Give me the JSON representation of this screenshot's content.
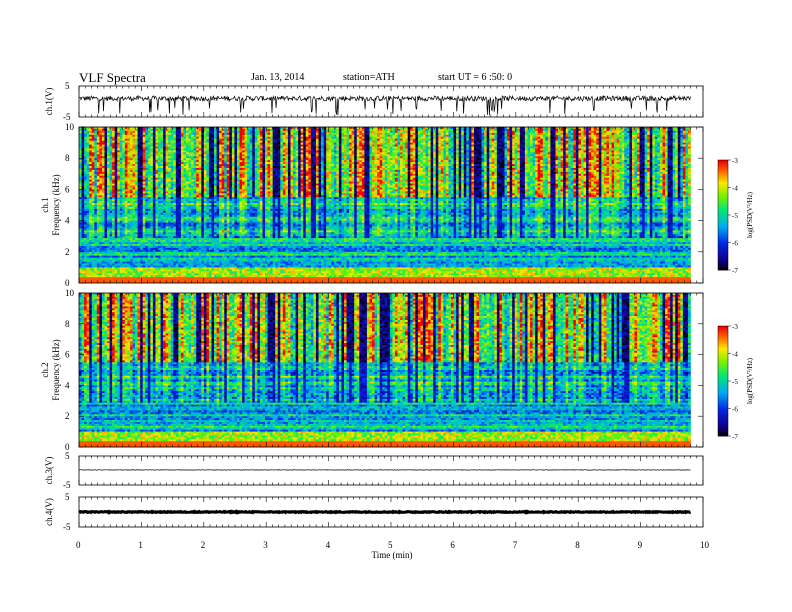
{
  "header": {
    "title": "VLF Spectra",
    "date": "Jan. 13, 2014",
    "station": "station=ATH",
    "start": "start UT =  6 :50: 0"
  },
  "chart_data": [
    {
      "type": "line",
      "panel": "ch1-waveform",
      "ylabel": "ch.1(V)",
      "ylim": [
        -5,
        5
      ],
      "yticks": [
        "5",
        "-5"
      ],
      "description_series": "noisy waveform around +1 V with frequent negative spikes",
      "baseline": 1.0,
      "spike_min": -4.5
    },
    {
      "type": "heatmap",
      "panel": "ch1-spectrogram",
      "ylabel": "ch.1\nFrequency (kHz)",
      "xlabel": "Time (min)",
      "xlim": [
        0,
        10
      ],
      "ylim": [
        0,
        10
      ],
      "yticks": [
        "0",
        "2",
        "4",
        "6",
        "8",
        "10"
      ],
      "data_end_min": 9.8,
      "colorbar": {
        "label": "log(PSD(V²/Hz)",
        "range": [
          -7,
          -3
        ],
        "ticks": [
          "-3",
          "-4",
          "-5",
          "-6",
          "-7"
        ]
      }
    },
    {
      "type": "heatmap",
      "panel": "ch2-spectrogram",
      "ylabel": "ch.2\nFrequency (kHz)",
      "xlabel": "Time (min)",
      "xlim": [
        0,
        10
      ],
      "ylim": [
        0,
        10
      ],
      "yticks": [
        "0",
        "2",
        "4",
        "6",
        "8",
        "10"
      ],
      "data_end_min": 9.8,
      "colorbar": {
        "label": "log(PSD(V²/Hz)",
        "range": [
          -7,
          -3
        ],
        "ticks": [
          "-3",
          "-4",
          "-5",
          "-6",
          "-7"
        ]
      }
    },
    {
      "type": "line",
      "panel": "ch3-waveform",
      "ylabel": "ch.3(V)",
      "ylim": [
        -5,
        5
      ],
      "yticks": [
        "5",
        "-5"
      ],
      "baseline": 0.2
    },
    {
      "type": "line",
      "panel": "ch4-waveform",
      "ylabel": "ch.4(V)",
      "ylim": [
        -5,
        5
      ],
      "yticks": [
        "5",
        "-5"
      ],
      "baseline": 0.0
    }
  ],
  "xaxis": {
    "label": "Time (min)",
    "ticks": [
      "0",
      "1",
      "2",
      "3",
      "4",
      "5",
      "6",
      "7",
      "8",
      "9",
      "10"
    ]
  }
}
